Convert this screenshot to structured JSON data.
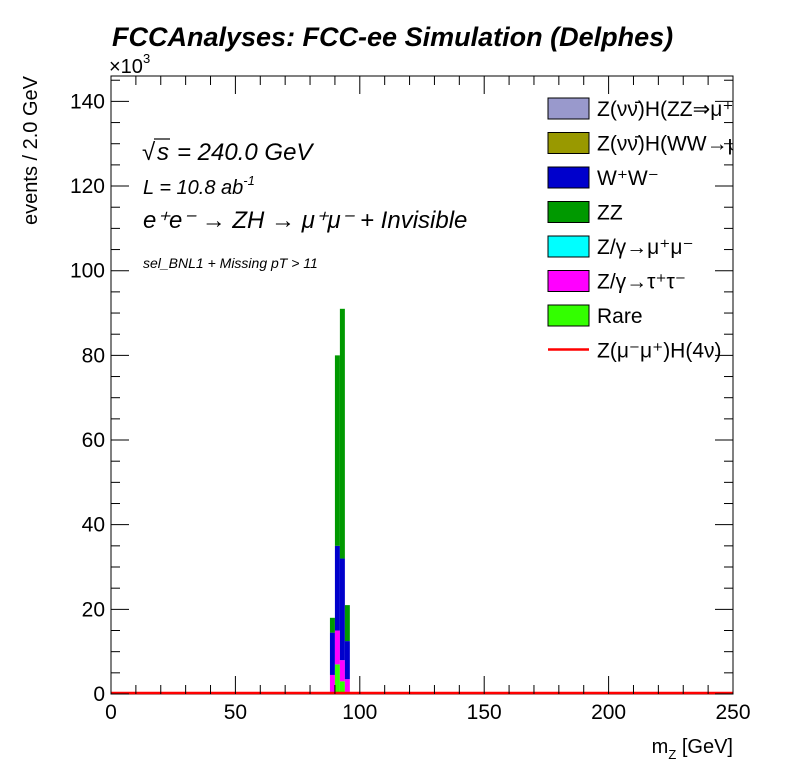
{
  "chart_data": {
    "type": "histogram-stack",
    "title": "FCCAnalyses: FCC-ee Simulation (Delphes)",
    "annotations": {
      "sqrt_s": "= 240.0 GeV",
      "lumi_prefix": "L = 10.8 ab",
      "lumi_exp": "-1",
      "process": "e⁺e⁻ → ZH → μ⁺μ⁻ + Invisible",
      "selection": "sel_BNL1 + Missing pT > 11"
    },
    "xlabel": "m",
    "xlabel_sub": "Z",
    "xlabel_unit": " [GeV]",
    "ylabel": "events / 2.0 GeV",
    "y_multiplier": "×10",
    "y_multiplier_exp": "3",
    "xlim": [
      0,
      250
    ],
    "ylim": [
      0,
      146
    ],
    "y_unit_scale": 1000,
    "bin_width": 2,
    "x_ticks": [
      0,
      50,
      100,
      150,
      200,
      250
    ],
    "y_ticks": [
      0,
      20,
      40,
      60,
      80,
      100,
      120,
      140
    ],
    "bins": [
      88,
      90,
      92,
      94
    ],
    "series": [
      {
        "name": "Z(νν̄)H(ZZ⇒μ⁺μ⁻ν⁺ν⁻)",
        "label_display": "Z(νν̄)H(ZZ⇒μ⁺μ⁻ν⁺",
        "color": "#9999cc",
        "values": [
          0,
          0,
          0,
          0
        ],
        "style": "fill"
      },
      {
        "name": "Z(νν̄)H(WW→μ⁺νμ⁻ν)",
        "label_display": "Z(νν̄)H(WW→μ⁺νμ",
        "color": "#999900",
        "values": [
          0,
          0,
          0,
          0
        ],
        "style": "fill"
      },
      {
        "name": "W⁺W⁻",
        "label_display": "W⁺W⁻",
        "color": "#0000cc",
        "values": [
          10,
          20,
          24,
          9
        ],
        "style": "fill"
      },
      {
        "name": "ZZ",
        "label_display": "ZZ",
        "color": "#009900",
        "values": [
          3.5,
          45,
          59,
          8.5
        ],
        "style": "fill"
      },
      {
        "name": "Z/γ→μ⁺μ⁻",
        "label_display": "Z/γ→μ⁺μ⁻",
        "color": "#00ffff",
        "values": [
          0,
          0,
          0,
          0
        ],
        "style": "fill"
      },
      {
        "name": "Z/γ→τ⁺τ⁻",
        "label_display": "Z/γ→τ⁺τ⁻",
        "color": "#ff00ff",
        "values": [
          4,
          8,
          5,
          3
        ],
        "style": "fill"
      },
      {
        "name": "Rare",
        "label_display": "Rare",
        "color": "#33ff00",
        "values": [
          0.5,
          7,
          3,
          0.5
        ],
        "style": "fill"
      },
      {
        "name": "Z(μ⁻μ⁺)H(4ν)",
        "label_display": "Z(μ⁻μ⁺)H(4ν)",
        "color": "#ff0000",
        "values": [
          0.1,
          0.3,
          0.3,
          0.1
        ],
        "style": "line"
      }
    ],
    "legend_position": "top-right",
    "grid": false
  }
}
